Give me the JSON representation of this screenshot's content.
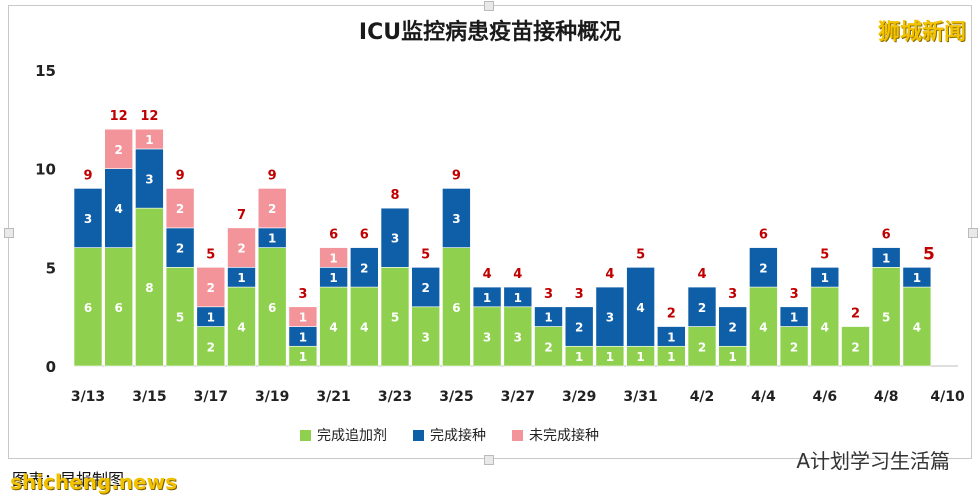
{
  "title": "ICU监控病患疫苗接种概况",
  "brand": "狮城新闻",
  "source": "图表：早报制图",
  "watermark": "A计划学习生活篇",
  "watermark2": "shicheng.news",
  "colors": {
    "booster": "#8fd14f",
    "full": "#0f5fa8",
    "unvaccinated": "#f3939a",
    "total_label": "#c00000"
  },
  "chart_data": {
    "type": "bar",
    "stacked": true,
    "title": "ICU监控病患疫苗接种概况",
    "categories": [
      "3/13",
      "3/14",
      "3/15",
      "3/16",
      "3/17",
      "3/18",
      "3/19",
      "3/20",
      "3/21",
      "3/22",
      "3/23",
      "3/24",
      "3/25",
      "3/26",
      "3/27",
      "3/28",
      "3/29",
      "3/30",
      "3/31",
      "4/1",
      "4/2",
      "4/3",
      "4/4",
      "4/5",
      "4/6",
      "4/7",
      "4/8",
      "4/9"
    ],
    "x_tick_labels": [
      "3/13",
      "3/15",
      "3/17",
      "3/19",
      "3/21",
      "3/23",
      "3/25",
      "3/27",
      "3/29",
      "3/31",
      "4/2",
      "4/4",
      "4/6",
      "4/8",
      "4/10"
    ],
    "ylim": [
      0,
      15
    ],
    "y_ticks": [
      0,
      5,
      10,
      15
    ],
    "grid": false,
    "legend": "bottom",
    "series": [
      {
        "name": "完成追加剂",
        "values": [
          6,
          6,
          8,
          5,
          2,
          4,
          6,
          1,
          4,
          4,
          5,
          3,
          6,
          3,
          3,
          2,
          1,
          1,
          1,
          1,
          2,
          1,
          4,
          2,
          4,
          2,
          5,
          4
        ]
      },
      {
        "name": "完成接种",
        "values": [
          3,
          4,
          3,
          2,
          1,
          1,
          1,
          1,
          1,
          2,
          3,
          2,
          3,
          1,
          1,
          1,
          2,
          3,
          4,
          1,
          2,
          2,
          2,
          1,
          1,
          0,
          1,
          1
        ]
      },
      {
        "name": "未完成接种",
        "values": [
          0,
          2,
          1,
          2,
          2,
          2,
          2,
          1,
          1,
          0,
          0,
          0,
          0,
          0,
          0,
          0,
          0,
          0,
          0,
          0,
          0,
          0,
          0,
          0,
          0,
          0,
          0,
          0
        ]
      }
    ],
    "totals": [
      9,
      12,
      12,
      9,
      5,
      7,
      9,
      3,
      6,
      6,
      8,
      5,
      9,
      4,
      4,
      3,
      3,
      4,
      5,
      2,
      4,
      3,
      6,
      3,
      5,
      2,
      6,
      5
    ]
  }
}
